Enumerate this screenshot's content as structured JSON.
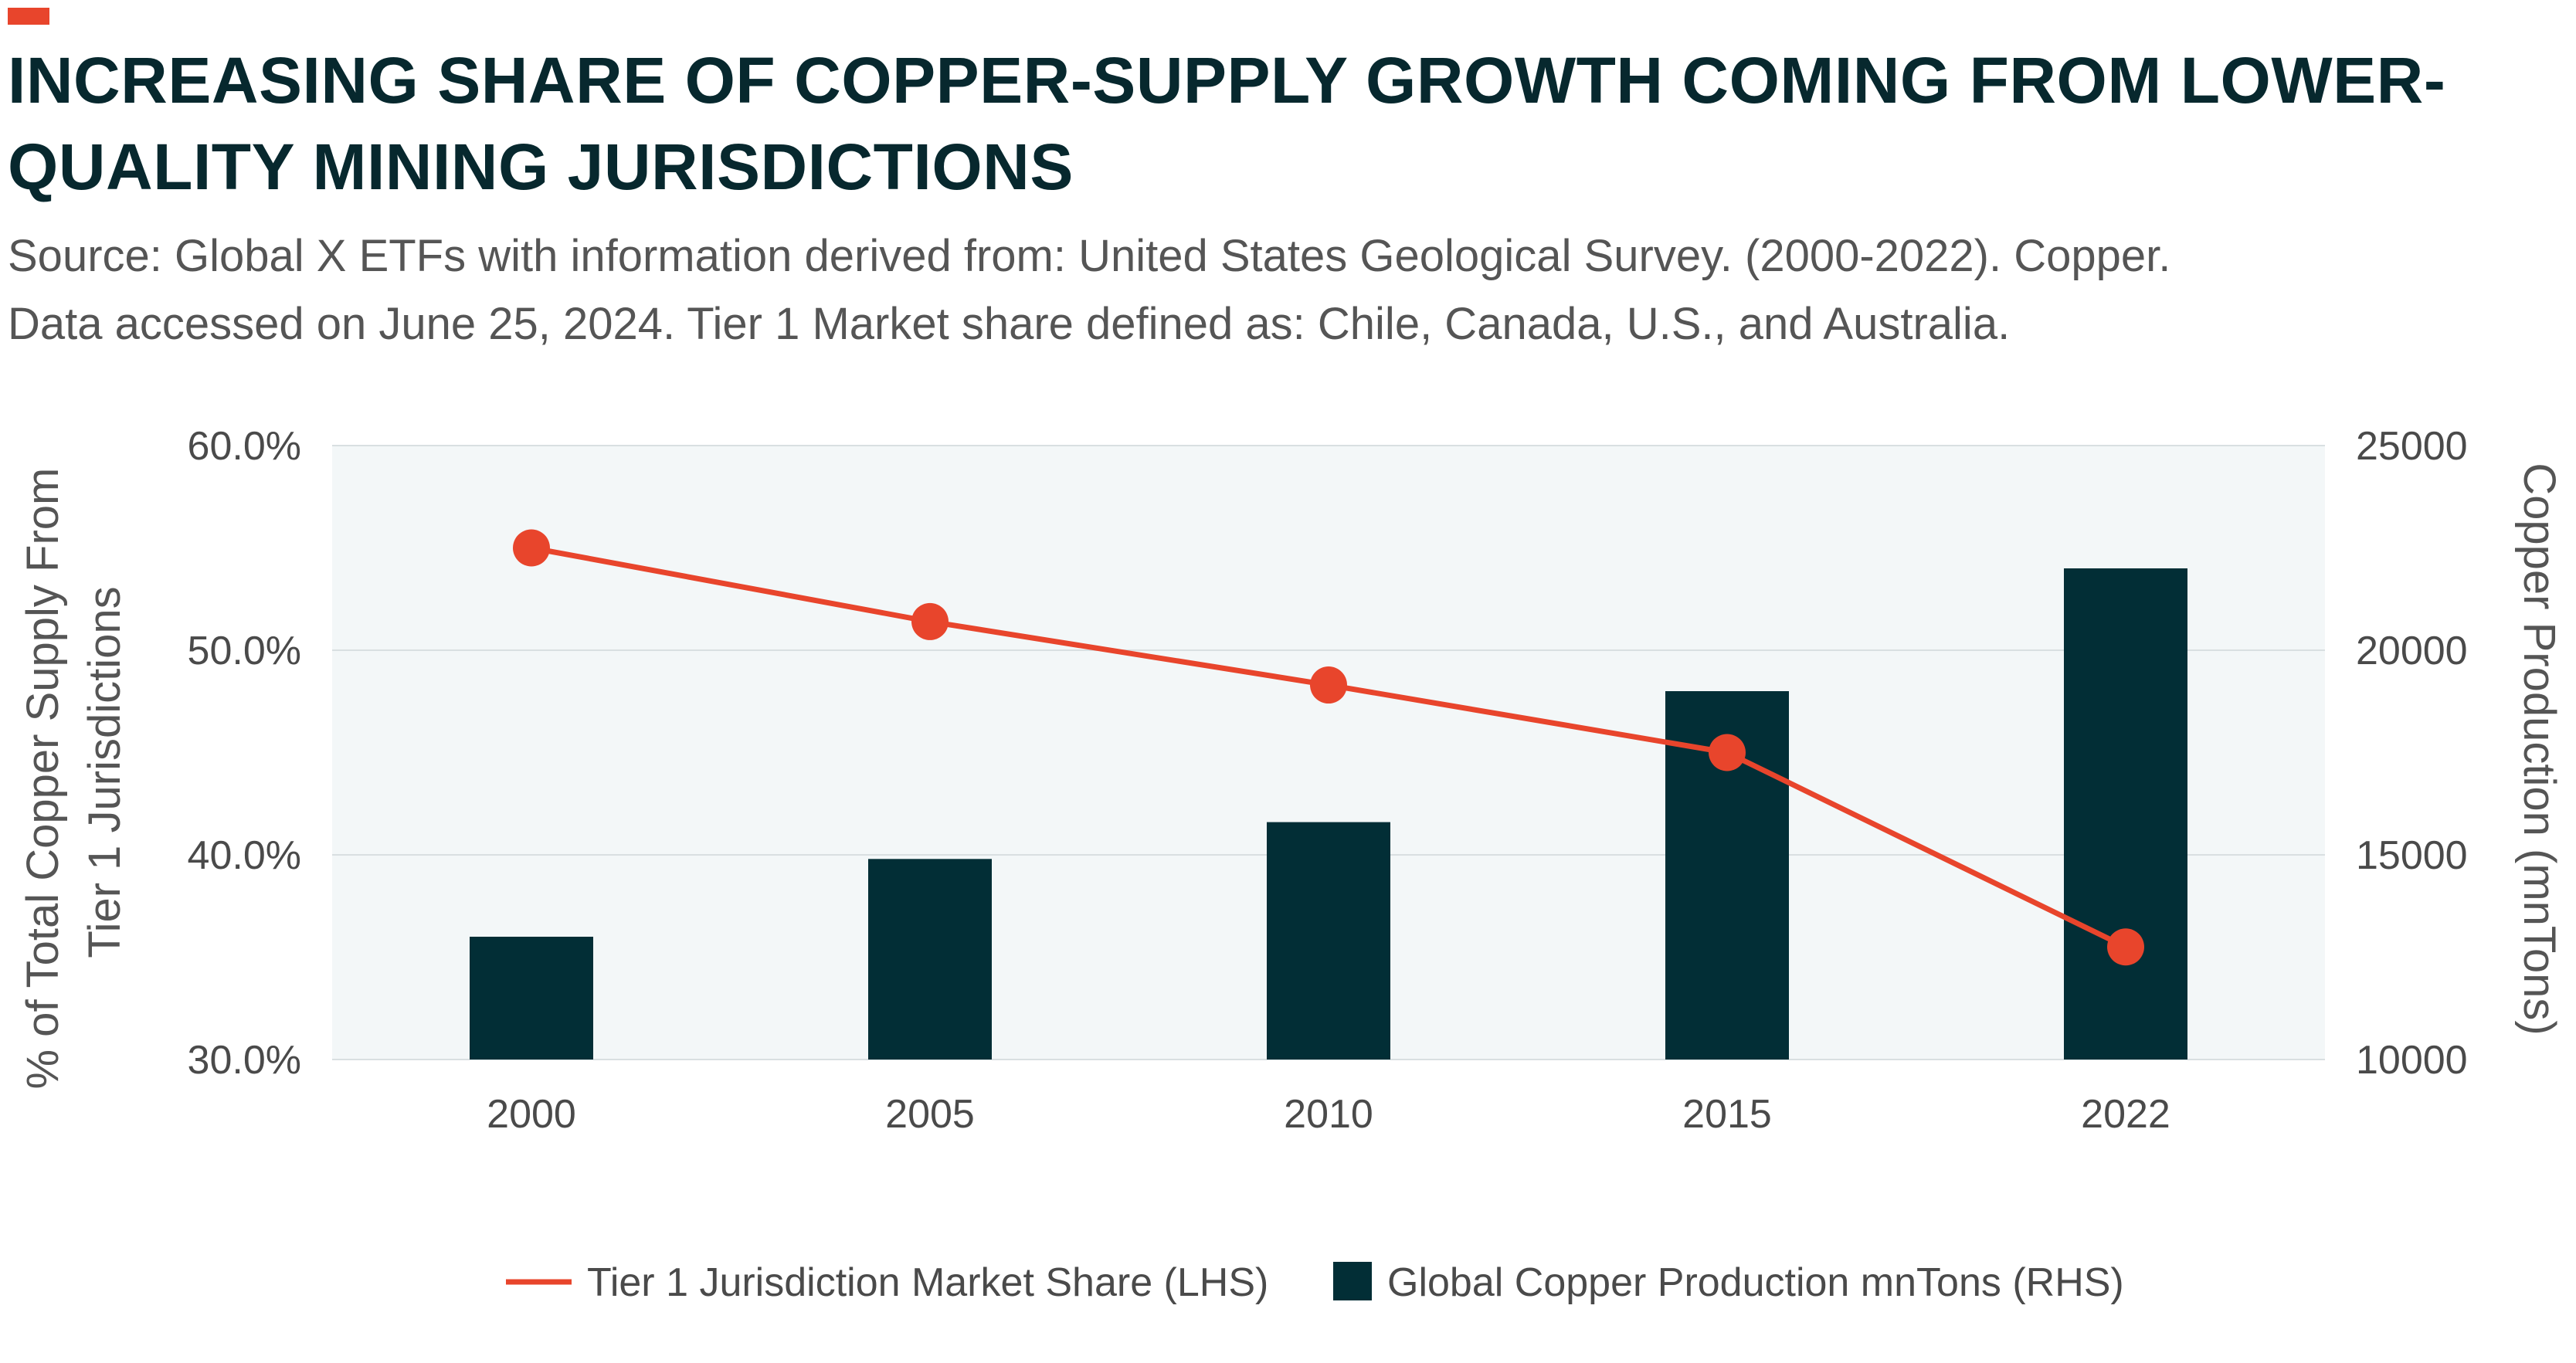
{
  "title": "INCREASING SHARE OF COPPER-SUPPLY GROWTH COMING FROM LOWER-QUALITY MINING JURISDICTIONS",
  "subtitle_lines": [
    "Source: Global X ETFs with information derived from: United States Geological Survey. (2000-2022). Copper.",
    "Data accessed on June 25, 2024. Tier 1 Market share defined as: Chile, Canada, U.S., and Australia."
  ],
  "colors": {
    "accent": "#e8452c",
    "line": "#e8452c",
    "bar": "#022e36",
    "plot_bg": "#f3f7f8",
    "grid": "#d9dfe1"
  },
  "chart_data": {
    "type": "bar+line",
    "categories": [
      "2000",
      "2005",
      "2010",
      "2015",
      "2022"
    ],
    "series": [
      {
        "name": "Tier 1 Jurisdiction Market Share (LHS)",
        "type": "line",
        "axis": "left",
        "values": [
          55.0,
          51.4,
          48.3,
          45.0,
          35.5
        ]
      },
      {
        "name": "Global Copper Production mnTons (RHS)",
        "type": "bar",
        "axis": "right",
        "values": [
          13000,
          14900,
          15800,
          19000,
          22000
        ]
      }
    ],
    "left_axis": {
      "label": "% of Total Copper Supply From Tier 1 Jurisdictions",
      "label_lines": [
        "% of Total Copper Supply From",
        "Tier 1 Jurisdictions"
      ],
      "ylim": [
        30,
        60
      ],
      "ticks": [
        "60.0%",
        "50.0%",
        "40.0%",
        "30.0%"
      ]
    },
    "right_axis": {
      "label": "Copper Production (mnTons)",
      "ylim": [
        10000,
        25000
      ],
      "ticks": [
        "25000",
        "20000",
        "15000",
        "10000"
      ]
    },
    "grid": true,
    "legend_position": "bottom-center"
  }
}
